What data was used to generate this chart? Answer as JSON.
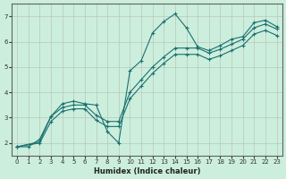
{
  "xlabel": "Humidex (Indice chaleur)",
  "bg_color": "#cceedd",
  "grid_color": "#b8c8b8",
  "line_color": "#1a7070",
  "xlim": [
    -0.5,
    23.5
  ],
  "ylim": [
    1.5,
    7.5
  ],
  "xticks": [
    0,
    1,
    2,
    3,
    4,
    5,
    6,
    7,
    8,
    9,
    10,
    11,
    12,
    13,
    14,
    15,
    16,
    17,
    18,
    19,
    20,
    21,
    22,
    23
  ],
  "yticks": [
    2,
    3,
    4,
    5,
    6,
    7
  ],
  "line1_x": [
    0,
    1,
    2,
    3,
    4,
    5,
    6,
    7,
    8,
    9,
    10,
    11,
    12,
    13,
    14,
    15,
    16,
    17,
    18,
    19,
    20,
    21,
    22,
    23
  ],
  "line1_y": [
    1.85,
    1.85,
    2.15,
    3.05,
    3.55,
    3.65,
    3.55,
    3.5,
    2.45,
    2.0,
    4.85,
    5.25,
    6.35,
    6.8,
    7.1,
    6.55,
    5.8,
    5.65,
    5.85,
    6.1,
    6.2,
    6.75,
    6.85,
    6.6
  ],
  "line2_x": [
    0,
    2,
    3,
    4,
    5,
    6,
    7,
    8,
    9,
    10,
    11,
    12,
    13,
    14,
    15,
    16,
    17,
    18,
    19,
    20,
    21,
    22,
    23
  ],
  "line2_y": [
    1.85,
    2.05,
    3.05,
    3.4,
    3.5,
    3.5,
    3.1,
    2.85,
    2.85,
    4.0,
    4.5,
    5.0,
    5.4,
    5.75,
    5.75,
    5.75,
    5.55,
    5.7,
    5.9,
    6.1,
    6.55,
    6.7,
    6.5
  ],
  "line3_x": [
    0,
    2,
    3,
    4,
    5,
    6,
    7,
    8,
    9,
    10,
    11,
    12,
    13,
    14,
    15,
    16,
    17,
    18,
    19,
    20,
    21,
    22,
    23
  ],
  "line3_y": [
    1.85,
    2.0,
    2.85,
    3.25,
    3.35,
    3.35,
    2.9,
    2.65,
    2.65,
    3.75,
    4.25,
    4.75,
    5.15,
    5.5,
    5.5,
    5.5,
    5.3,
    5.45,
    5.65,
    5.85,
    6.3,
    6.45,
    6.25
  ],
  "markersize": 2.5
}
